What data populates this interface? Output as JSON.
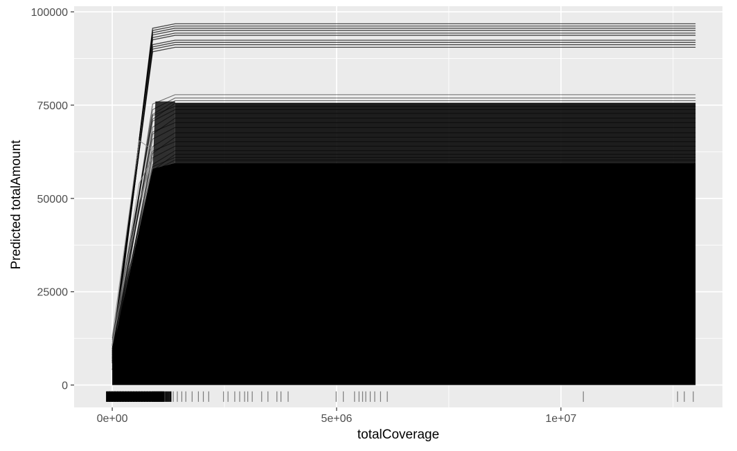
{
  "chart_data": {
    "type": "line",
    "title": "",
    "xlabel": "totalCoverage",
    "ylabel": "Predicted totalAmount",
    "xlim": [
      -850000,
      13600000
    ],
    "ylim": [
      -6000,
      101500
    ],
    "x_ticks": [
      0,
      5000000,
      10000000
    ],
    "x_tick_labels": [
      "0e+00",
      "5e+06",
      "1e+07"
    ],
    "y_ticks": [
      0,
      25000,
      50000,
      75000,
      100000
    ],
    "y_tick_labels": [
      "0",
      "25000",
      "50000",
      "75000",
      "100000"
    ],
    "grid": true,
    "legend": "none",
    "panel_background": "#ebebeb",
    "grid_color": "#ffffff",
    "line_color": "#000000",
    "x_grid": [
      0,
      900000,
      1400000,
      13000000
    ],
    "series_summary": {
      "description": "many overlapping ICE curves; plateau bands",
      "top_band_plateaus": [
        96800,
        96200,
        95600,
        95000,
        94300,
        93700,
        92400,
        91800,
        91200,
        90500
      ],
      "mid_band_plateaus": [
        77800,
        76900,
        76200,
        75500,
        74700,
        73800,
        72800,
        71500,
        70300,
        69000,
        67600,
        66400,
        65200,
        64000,
        62800,
        61800,
        61000,
        60300
      ]
    },
    "rug_x": [
      -120000,
      -60000,
      0,
      60000,
      120000,
      180000,
      240000,
      300000,
      360000,
      420000,
      480000,
      540000,
      600000,
      660000,
      720000,
      780000,
      840000,
      900000,
      940000,
      980000,
      1020000,
      1060000,
      1100000,
      1140000,
      1180000,
      1220000,
      1260000,
      1300000,
      1360000,
      1450000,
      1550000,
      1640000,
      1780000,
      1920000,
      2030000,
      2150000,
      2480000,
      2580000,
      2730000,
      2840000,
      2950000,
      3020000,
      3120000,
      3330000,
      3470000,
      3670000,
      3760000,
      3920000,
      4990000,
      5150000,
      5400000,
      5500000,
      5580000,
      5650000,
      5750000,
      5850000,
      5980000,
      6130000,
      10500000,
      12600000,
      12750000,
      12950000
    ]
  }
}
